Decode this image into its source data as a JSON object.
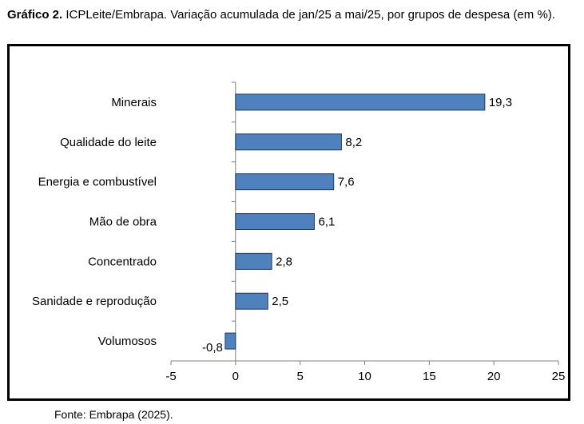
{
  "caption": {
    "label": "Gráfico 2.",
    "text": " ICPLeite/Embrapa. Variação acumulada de jan/25 a mai/25, por grupos de despesa (em %)."
  },
  "source": "Fonte: Embrapa (2025).",
  "colors": {
    "bar_fill": "#4f81bd",
    "bar_stroke": "#1f3a5f",
    "axis": "#808080"
  },
  "chart_data": {
    "type": "bar",
    "orientation": "horizontal",
    "categories": [
      "Minerais",
      "Qualidade do leite",
      "Energia e combustível",
      "Mão de obra",
      "Concentrado",
      "Sanidade e reprodução",
      "Volumosos"
    ],
    "values": [
      19.3,
      8.2,
      7.6,
      6.1,
      2.8,
      2.5,
      -0.8
    ],
    "value_labels": [
      "19,3",
      "8,2",
      "7,6",
      "6,1",
      "2,8",
      "2,5",
      "-0,8"
    ],
    "xlim": [
      -5,
      25
    ],
    "xticks": [
      -5,
      0,
      5,
      10,
      15,
      20,
      25
    ],
    "grid": false,
    "legend": "none",
    "title": "",
    "xlabel": "",
    "ylabel": ""
  }
}
